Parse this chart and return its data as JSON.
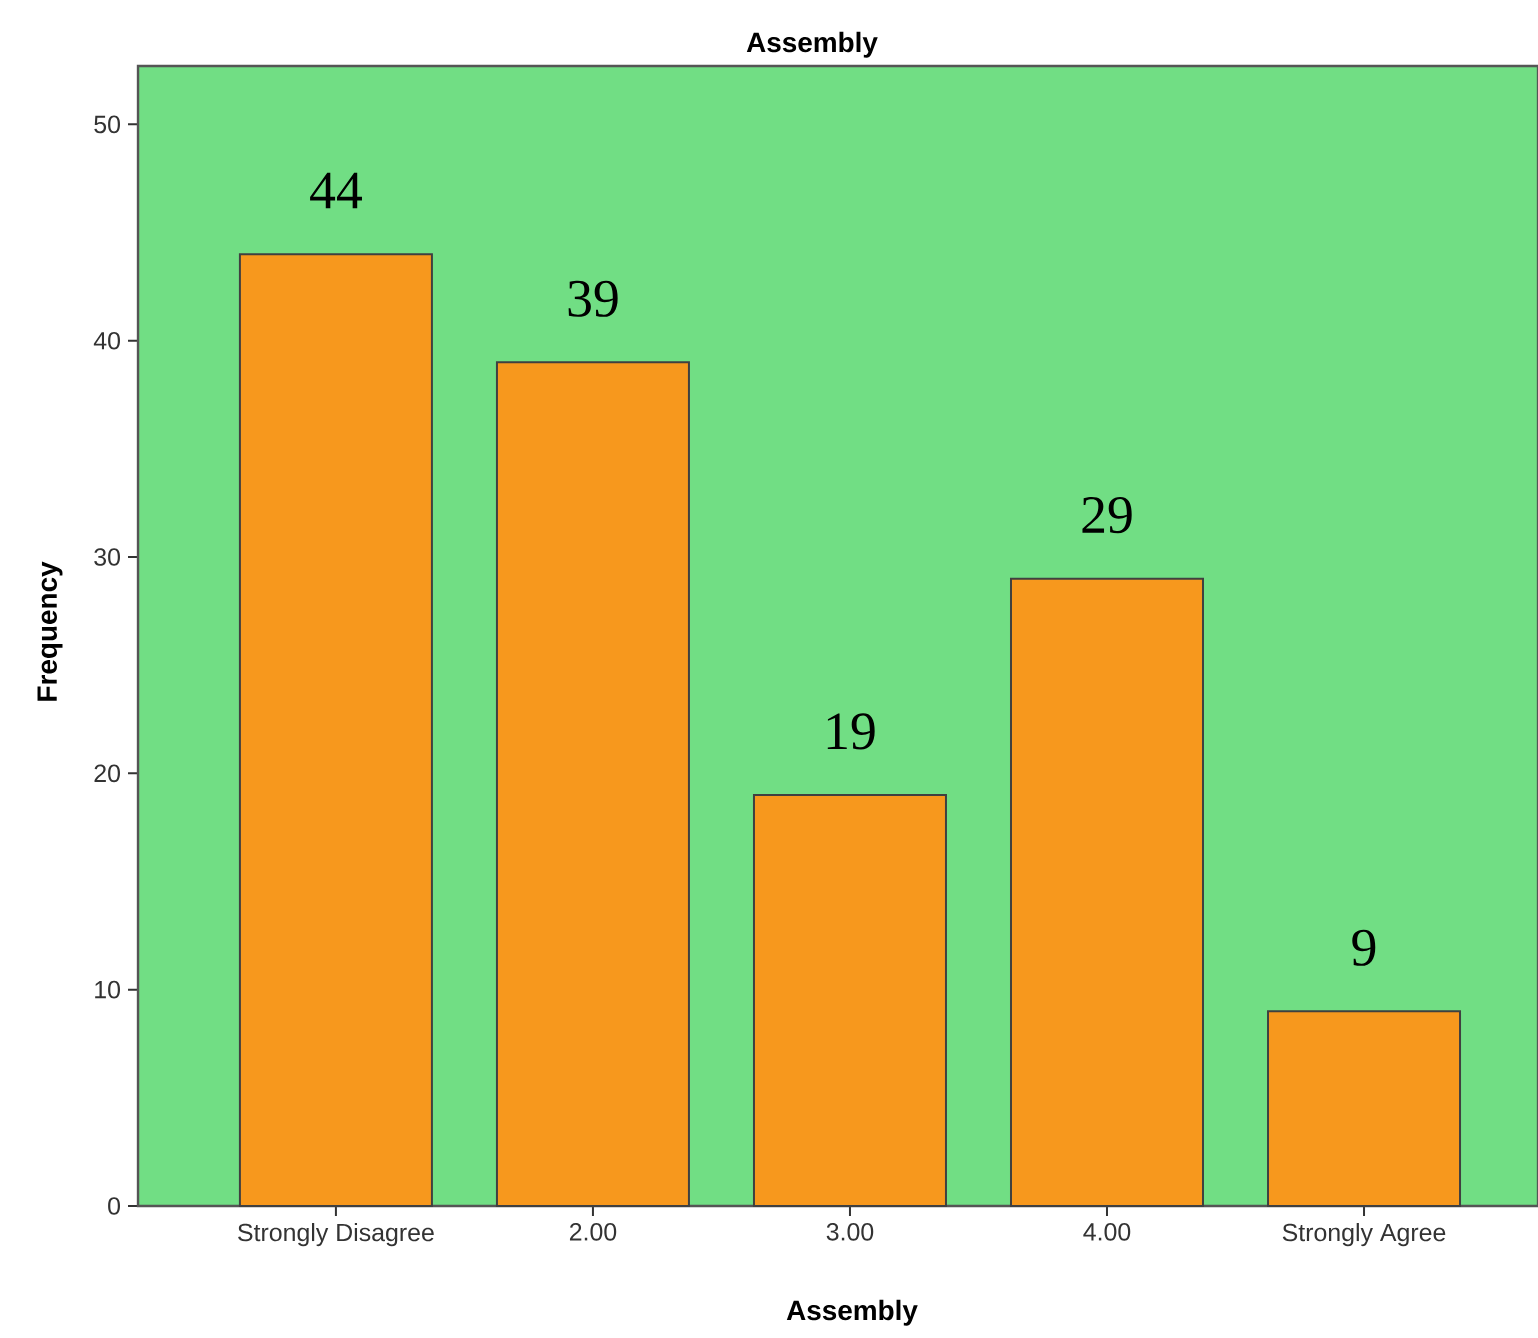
{
  "chart_data": {
    "type": "bar",
    "title": "Assembly",
    "xlabel": "Assembly",
    "ylabel": "Frequency",
    "categories": [
      "Strongly Disagree",
      "2.00",
      "3.00",
      "4.00",
      "Strongly Agree"
    ],
    "values": [
      44,
      39,
      19,
      29,
      9
    ],
    "color": "#f7981d",
    "ylim": [
      0,
      52.7
    ],
    "yticks": [
      0,
      10,
      20,
      30,
      40,
      50
    ],
    "data_labels": true
  }
}
